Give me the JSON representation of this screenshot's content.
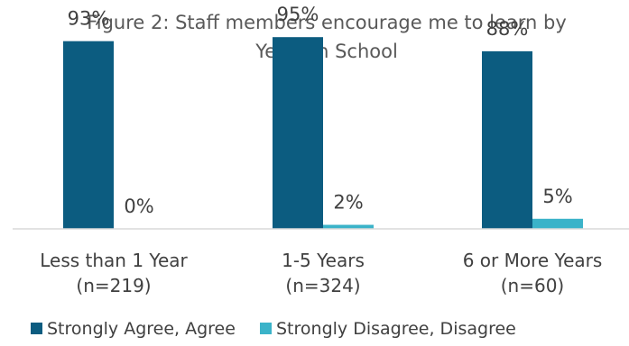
{
  "chart_data": {
    "type": "bar",
    "title": "Figure 2: Staff members encourage me to learn by Years in School",
    "title_lines": [
      "Figure 2: Staff members encourage me to learn by",
      "Years in School"
    ],
    "categories": [
      [
        "Less than 1 Year",
        "(n=219)"
      ],
      [
        "1-5 Years",
        "(n=324)"
      ],
      [
        "6 or More Years",
        "(n=60)"
      ]
    ],
    "series": [
      {
        "name": "Strongly Agree, Agree",
        "values": [
          93,
          95,
          88
        ],
        "labels": [
          "93%",
          "95%",
          "88%"
        ],
        "color": "#0c5c80"
      },
      {
        "name": "Strongly Disagree, Disagree",
        "values": [
          0,
          2,
          5
        ],
        "labels": [
          "0%",
          "2%",
          "5%"
        ],
        "color": "#3bb3c9"
      }
    ],
    "ylim": [
      0,
      100
    ],
    "xlabel": "",
    "ylabel": "",
    "grid": false,
    "legend": "bottom"
  }
}
